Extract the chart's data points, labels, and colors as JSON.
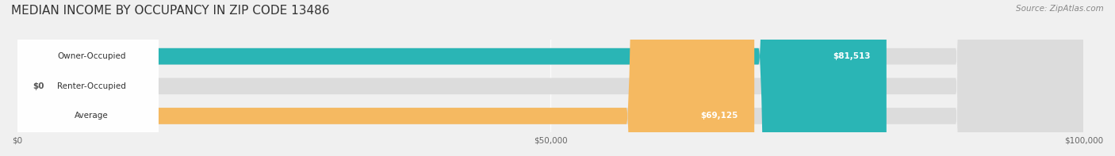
{
  "title": "MEDIAN INCOME BY OCCUPANCY IN ZIP CODE 13486",
  "source_text": "Source: ZipAtlas.com",
  "categories": [
    "Owner-Occupied",
    "Renter-Occupied",
    "Average"
  ],
  "values": [
    81513,
    0,
    69125
  ],
  "bar_colors": [
    "#2ab5b5",
    "#c9a8d4",
    "#f5b961"
  ],
  "label_colors": [
    "#2ab5b5",
    "#c9a8d4",
    "#f5b961"
  ],
  "value_labels": [
    "$81,513",
    "$0",
    "$69,125"
  ],
  "xlim": [
    0,
    100000
  ],
  "xticks": [
    0,
    50000,
    100000
  ],
  "xtick_labels": [
    "$0",
    "$50,000",
    "$100,000"
  ],
  "background_color": "#f0f0f0",
  "bar_background": "#e8e8e8",
  "title_fontsize": 11,
  "bar_height": 0.55,
  "figsize": [
    14.06,
    1.97
  ],
  "dpi": 100
}
